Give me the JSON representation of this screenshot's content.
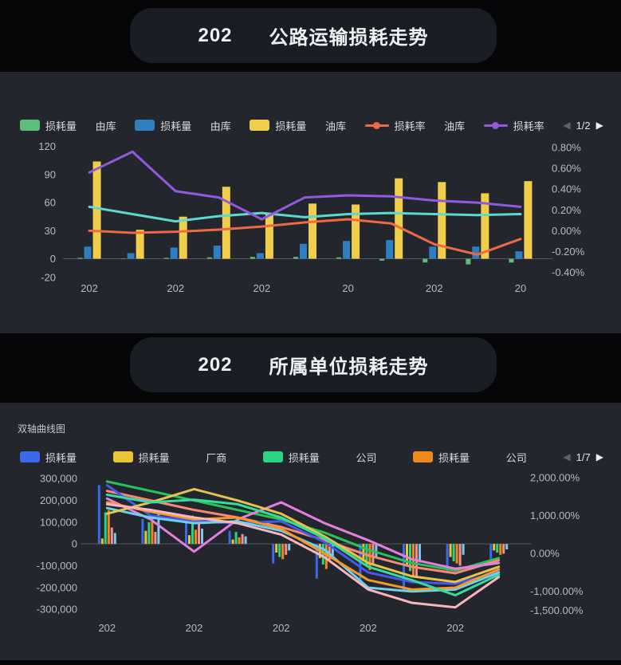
{
  "page": {
    "bg": "#060609",
    "panel_bg": "#23262d",
    "pill_bg": "#1a1d23",
    "axis_label_color": "#b7bac1",
    "axis_line_color": "#54575f"
  },
  "section1": {
    "title": {
      "prefix": "202",
      "text": "公路运输损耗走势"
    },
    "legend": {
      "items": [
        {
          "kind": "bar",
          "color": "#5dbd7b",
          "label": "损耗量"
        },
        {
          "kind": "text",
          "label": "由库"
        },
        {
          "kind": "bar",
          "color": "#2d7fbf",
          "label": "损耗量"
        },
        {
          "kind": "text",
          "label": "由库"
        },
        {
          "kind": "bar",
          "color": "#f0ce49",
          "label": "损耗量"
        },
        {
          "kind": "text",
          "label": "油库"
        },
        {
          "kind": "line",
          "color": "#ee6a47",
          "label": "损耗率"
        },
        {
          "kind": "text",
          "label": "油库"
        },
        {
          "kind": "line",
          "color": "#9159dd",
          "label": "损耗率"
        },
        {
          "kind": "pager",
          "prev": "◀",
          "label": "1/2",
          "next": "▶"
        }
      ]
    },
    "chart_data": {
      "type": "bar+line dual-axis",
      "title": "202 公路运输损耗走势",
      "categories": [
        "202",
        "",
        "202",
        "",
        "202",
        "",
        "20",
        "",
        "202",
        "",
        "20"
      ],
      "left_axis": {
        "range": [
          -20,
          130
        ],
        "ticks": [
          {
            "v": 120,
            "label": "120"
          },
          {
            "v": 90,
            "label": "90"
          },
          {
            "v": 60,
            "label": "60"
          },
          {
            "v": 30,
            "label": "30"
          },
          {
            "v": 0,
            "label": "0"
          },
          {
            "v": -20,
            "label": "-20"
          }
        ]
      },
      "right_axis": {
        "range": [
          -0.45,
          0.9
        ],
        "ticks": [
          {
            "v": 0.8,
            "label": "0.80%"
          },
          {
            "v": 0.6,
            "label": "0.60%"
          },
          {
            "v": 0.4,
            "label": "0.40%"
          },
          {
            "v": 0.2,
            "label": "0.20%"
          },
          {
            "v": 0.0,
            "label": "0.00%"
          },
          {
            "v": -0.2,
            "label": "-0.20%"
          },
          {
            "v": -0.4,
            "label": "-0.40%"
          }
        ]
      },
      "bar_series": [
        {
          "name": "损耗量-green",
          "color": "#5dbd7b",
          "axis": "left",
          "values": [
            1,
            0.5,
            1,
            1.5,
            2,
            2,
            1.5,
            -2,
            -4,
            -6,
            -4
          ]
        },
        {
          "name": "损耗量-blue",
          "color": "#2d7fbf",
          "axis": "left",
          "values": [
            13,
            6,
            12,
            14,
            6,
            16,
            19,
            20,
            13,
            13,
            8
          ]
        },
        {
          "name": "损耗量-yellow",
          "color": "#f0ce49",
          "axis": "left",
          "values": [
            104,
            31,
            45,
            77,
            48,
            59,
            58,
            86,
            82,
            70,
            83
          ]
        }
      ],
      "line_series": [
        {
          "name": "损耗率-cyan",
          "color": "#5fd8cf",
          "axis": "right",
          "values": [
            0.23,
            0.16,
            0.09,
            0.14,
            0.17,
            0.13,
            0.16,
            0.17,
            0.16,
            0.15,
            0.16
          ]
        },
        {
          "name": "损耗率-orange",
          "color": "#ee6a47",
          "axis": "right",
          "values": [
            0.0,
            -0.02,
            -0.01,
            0.01,
            0.04,
            0.08,
            0.11,
            0.07,
            -0.13,
            -0.23,
            -0.08
          ]
        },
        {
          "name": "损耗率-purple",
          "color": "#9159dd",
          "axis": "right",
          "values": [
            0.56,
            0.76,
            0.38,
            0.32,
            0.11,
            0.32,
            0.34,
            0.33,
            0.29,
            0.27,
            0.23
          ]
        }
      ],
      "grid": false,
      "legend_position": "top"
    }
  },
  "section2": {
    "title": {
      "prefix": "202",
      "text": "所属单位损耗走势"
    },
    "subtitle": "双轴曲线图",
    "legend": {
      "items": [
        {
          "kind": "bar",
          "color": "#3b6ae9",
          "label": "损耗量"
        },
        {
          "kind": "bar",
          "color": "#e9c636",
          "label": "损耗量"
        },
        {
          "kind": "text",
          "label": "厂商"
        },
        {
          "kind": "bar",
          "color": "#2bd480",
          "label": "损耗量"
        },
        {
          "kind": "text",
          "label": "公司"
        },
        {
          "kind": "bar",
          "color": "#f0891d",
          "label": "损耗量"
        },
        {
          "kind": "text",
          "label": "公司"
        },
        {
          "kind": "pager",
          "prev": "◀",
          "label": "1/7",
          "next": "▶"
        }
      ]
    },
    "chart_data": {
      "type": "bar+line dual-axis",
      "title": "202 所属单位损耗走势",
      "subtitle": "双轴曲线图",
      "categories": [
        "202",
        "",
        "202",
        "",
        "202",
        "",
        "202",
        "",
        "202",
        ""
      ],
      "left_axis": {
        "range": [
          -340000,
          330000
        ],
        "ticks": [
          {
            "v": 300000,
            "label": "300,000"
          },
          {
            "v": 200000,
            "label": "200,000"
          },
          {
            "v": 100000,
            "label": "100,000"
          },
          {
            "v": 0,
            "label": "0"
          },
          {
            "v": -100000,
            "label": "-100,000"
          },
          {
            "v": -200000,
            "label": "-200,000"
          },
          {
            "v": -300000,
            "label": "-300,000"
          }
        ]
      },
      "right_axis": {
        "range": [
          -1700,
          2150
        ],
        "ticks": [
          {
            "v": 2000,
            "label": "2,000.00%"
          },
          {
            "v": 1000,
            "label": "1,000.00%"
          },
          {
            "v": 0,
            "label": "0.00%"
          },
          {
            "v": -1000,
            "label": "-1,000.00%"
          },
          {
            "v": -1500,
            "label": "-1,500.00%"
          }
        ]
      },
      "bar_series": [
        {
          "name": "损耗量-blue",
          "color": "#3b6ae9",
          "axis": "left",
          "values": [
            270000,
            115000,
            120000,
            60000,
            -90000,
            -160000,
            -170000,
            -215000,
            -130000,
            -70000
          ]
        },
        {
          "name": "损耗量-yellow",
          "color": "#e9c636",
          "axis": "left",
          "values": [
            25000,
            60000,
            40000,
            20000,
            -40000,
            -65000,
            -80000,
            -100000,
            -60000,
            -30000
          ]
        },
        {
          "name": "损耗量-green",
          "color": "#2bd480",
          "axis": "left",
          "values": [
            145000,
            100000,
            130000,
            55000,
            -60000,
            -95000,
            -105000,
            -125000,
            -80000,
            -40000
          ]
        },
        {
          "name": "损耗量-orange",
          "color": "#f0891d",
          "axis": "left",
          "values": [
            155000,
            125000,
            65000,
            30000,
            -70000,
            -115000,
            -120000,
            -145000,
            -90000,
            -50000
          ]
        },
        {
          "name": "损耗量-salmon",
          "color": "#f0918f",
          "axis": "left",
          "values": [
            75000,
            55000,
            95000,
            45000,
            -50000,
            -75000,
            -90000,
            -150000,
            -100000,
            -45000
          ]
        },
        {
          "name": "损耗量-lightblue",
          "color": "#7ec8ee",
          "axis": "left",
          "values": [
            50000,
            140000,
            70000,
            35000,
            -30000,
            -55000,
            -65000,
            -85000,
            -50000,
            -25000
          ]
        }
      ],
      "line_series": [
        {
          "name": "损耗率-green",
          "color": "#28c356",
          "axis": "right",
          "values": [
            1900,
            1650,
            1400,
            1150,
            900,
            550,
            100,
            -250,
            -450,
            -120
          ]
        },
        {
          "name": "损耗率-coral",
          "color": "#f58b77",
          "axis": "right",
          "values": [
            1650,
            1400,
            1150,
            950,
            700,
            350,
            -50,
            -350,
            -520,
            -180
          ]
        },
        {
          "name": "损耗率-magenta",
          "color": "#e47fe0",
          "axis": "right",
          "values": [
            1450,
            900,
            50,
            900,
            1350,
            800,
            350,
            -150,
            -400,
            -250
          ]
        },
        {
          "name": "损耗率-blue",
          "color": "#4a57ee",
          "axis": "right",
          "values": [
            1800,
            1000,
            850,
            800,
            850,
            300,
            -500,
            -750,
            -800,
            -480
          ]
        },
        {
          "name": "损耗率-cyan",
          "color": "#6ad2f2",
          "axis": "right",
          "values": [
            1200,
            950,
            800,
            850,
            600,
            100,
            -900,
            -1000,
            -950,
            -500
          ]
        },
        {
          "name": "损耗率-orange",
          "color": "#f2992a",
          "axis": "right",
          "values": [
            1350,
            1100,
            900,
            950,
            650,
            0,
            -700,
            -950,
            -900,
            -420
          ]
        },
        {
          "name": "损耗率-yellow",
          "color": "#e3c44c",
          "axis": "right",
          "values": [
            1050,
            1350,
            1700,
            1400,
            1050,
            450,
            -250,
            -600,
            -750,
            -350
          ]
        },
        {
          "name": "损耗率-lightpink",
          "color": "#f7b7bd",
          "axis": "right",
          "values": [
            1300,
            1150,
            950,
            800,
            500,
            -100,
            -950,
            -1300,
            -1420,
            -620
          ]
        },
        {
          "name": "损耗率-springgreen",
          "color": "#35dc9c",
          "axis": "right",
          "values": [
            1550,
            1350,
            1420,
            1300,
            950,
            400,
            -350,
            -700,
            -1100,
            -560
          ]
        }
      ],
      "grid": false,
      "legend_position": "top"
    }
  }
}
